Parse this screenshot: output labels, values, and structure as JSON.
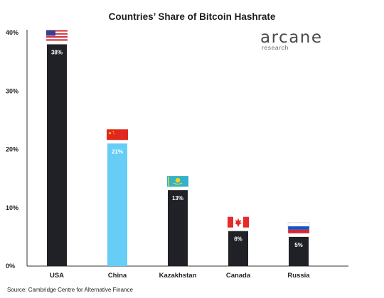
{
  "chart_data": {
    "type": "bar",
    "title": "Countries’ Share of Bitcoin Hashrate",
    "xlabel": "",
    "ylabel": "",
    "ylim": [
      0,
      40
    ],
    "yticks": [
      0,
      10,
      20,
      30,
      40
    ],
    "ytick_labels": [
      "0%",
      "10%",
      "20%",
      "30%",
      "40%"
    ],
    "categories": [
      "USA",
      "China",
      "Kazakhstan",
      "Canada",
      "Russia"
    ],
    "values": [
      38,
      21,
      13,
      6,
      5
    ],
    "data_labels": [
      "38%",
      "21%",
      "13%",
      "6%",
      "5%"
    ],
    "bar_colors": [
      "#1f2126",
      "#66cdf6",
      "#1f2126",
      "#1f2126",
      "#1f2126"
    ],
    "flags": [
      "usa-flag-icon",
      "china-flag-icon",
      "kazakhstan-flag-icon",
      "canada-flag-icon",
      "russia-flag-icon"
    ],
    "grid": false,
    "legend": "none"
  },
  "branding": {
    "name": "arcane",
    "sub": "research"
  },
  "source": "Source: Cambridge Centre for Alternative Finance"
}
